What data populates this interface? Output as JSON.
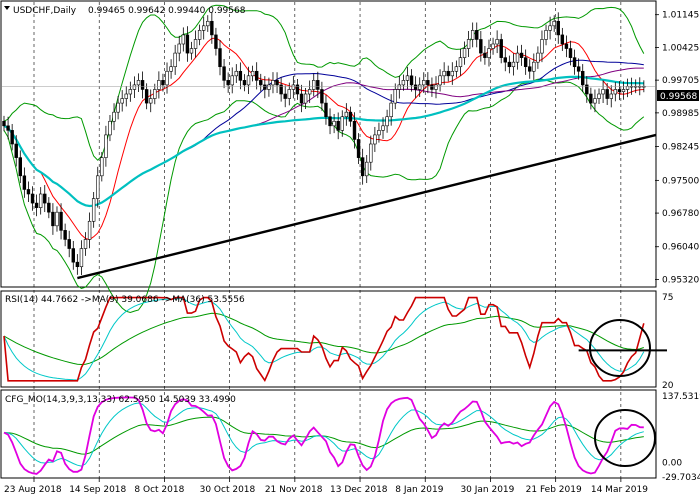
{
  "header": {
    "title": "USDCHF,Daily",
    "ohlc": "0.99465 0.99642 0.99440 0.99568"
  },
  "price_badge": "0.99568",
  "rsi": {
    "label": "RSI(14) 44.7662 ->MA(9) 39.0686 ->MA(36) 53.5556"
  },
  "cfg": {
    "label": "CFG_MO(14,3,9,3,13,33) 62.5950 14.5039 33.4990"
  },
  "colors": {
    "candle": "#000000",
    "ma_green": "#009900",
    "ma_red": "#ff0000",
    "ma_blue": "#000099",
    "ma_purple": "#800080",
    "ma_cyan": "#00c0c0",
    "rsi_line": "#cc0000",
    "cfg_line": "#e000e0",
    "signal_cyan": "#00c8c8",
    "signal_green": "#009900",
    "annotation": "#000000"
  },
  "chart_data": [
    {
      "type": "candlestick",
      "instrument": "USDCHF",
      "timeframe": "Daily",
      "y_ticks": [
        "1.01145",
        "1.00425",
        "0.99705",
        "0.98985",
        "0.98245",
        "0.97500",
        "0.96780",
        "0.96040",
        "0.95320"
      ],
      "ylim": [
        0.9522,
        1.0138
      ],
      "x_labels": [
        "23 Aug 2018",
        "14 Sep 2018",
        "8 Oct 2018",
        "30 Oct 2018",
        "21 Nov 2018",
        "13 Dec 2018",
        "8 Jan 2019",
        "30 Jan 2019",
        "21 Feb 2019",
        "14 Mar 2019"
      ],
      "x_label_index": [
        0,
        16,
        32,
        48,
        64,
        80,
        96,
        112,
        128,
        144
      ],
      "n_bars": 160,
      "close": [
        0.987,
        0.986,
        0.983,
        0.98,
        0.976,
        0.973,
        0.972,
        0.97,
        0.969,
        0.972,
        0.97,
        0.968,
        0.965,
        0.968,
        0.964,
        0.962,
        0.96,
        0.957,
        0.956,
        0.96,
        0.962,
        0.966,
        0.971,
        0.976,
        0.98,
        0.985,
        0.988,
        0.99,
        0.992,
        0.993,
        0.994,
        0.995,
        0.996,
        0.997,
        0.995,
        0.992,
        0.993,
        0.995,
        0.997,
        0.996,
        0.999,
        1.0,
        1.003,
        1.005,
        1.007,
        1.003,
        1.004,
        1.006,
        1.008,
        1.009,
        1.01,
        1.007,
        1.004,
        1.0,
        0.997,
        0.996,
        0.998,
        0.999,
        0.997,
        0.996,
        0.998,
        0.999,
        0.997,
        0.996,
        0.995,
        0.996,
        0.997,
        0.996,
        0.994,
        0.993,
        0.995,
        0.996,
        0.994,
        0.992,
        0.994,
        0.995,
        0.997,
        0.995,
        0.992,
        0.989,
        0.987,
        0.988,
        0.986,
        0.989,
        0.99,
        0.988,
        0.984,
        0.98,
        0.976,
        0.979,
        0.983,
        0.985,
        0.986,
        0.987,
        0.989,
        0.992,
        0.995,
        0.996,
        0.997,
        0.998,
        0.996,
        0.995,
        0.996,
        0.997,
        0.996,
        0.995,
        0.996,
        0.998,
        0.999,
        0.998,
        0.999,
        1.0,
        1.002,
        1.004,
        1.006,
        1.008,
        1.006,
        1.003,
        1.002,
        1.004,
        1.005,
        1.006,
        1.002,
        1.001,
        1.0,
        1.001,
        1.003,
        1.002,
        1.0,
        0.999,
        1.001,
        1.003,
        1.006,
        1.008,
        1.009,
        1.01,
        1.007,
        1.005,
        1.004,
        1.002,
        1.0,
        0.999,
        0.996,
        0.994,
        0.992,
        0.993,
        0.994,
        0.995,
        0.993,
        0.994,
        0.995,
        0.9945,
        0.995,
        0.9957,
        0.9957,
        0.9957,
        0.9957,
        0.9957
      ],
      "trendline": [
        [
          18,
          0.9535
        ],
        [
          160,
          0.985
        ]
      ],
      "current_price_line": 0.99568
    },
    {
      "type": "line",
      "name": "RSI(14)",
      "ylim": [
        20,
        75
      ],
      "y_ticks": [
        "75",
        "20"
      ],
      "horizontal_annotation": 41,
      "circle_annotation": true
    },
    {
      "type": "line",
      "name": "CFG_MO(14,3,9,3,13,33)",
      "ylim": [
        -29.7034,
        137.5319
      ],
      "y_ticks": [
        "137.5319",
        "0.00",
        "-29.7034"
      ],
      "circle_annotation": true
    }
  ]
}
